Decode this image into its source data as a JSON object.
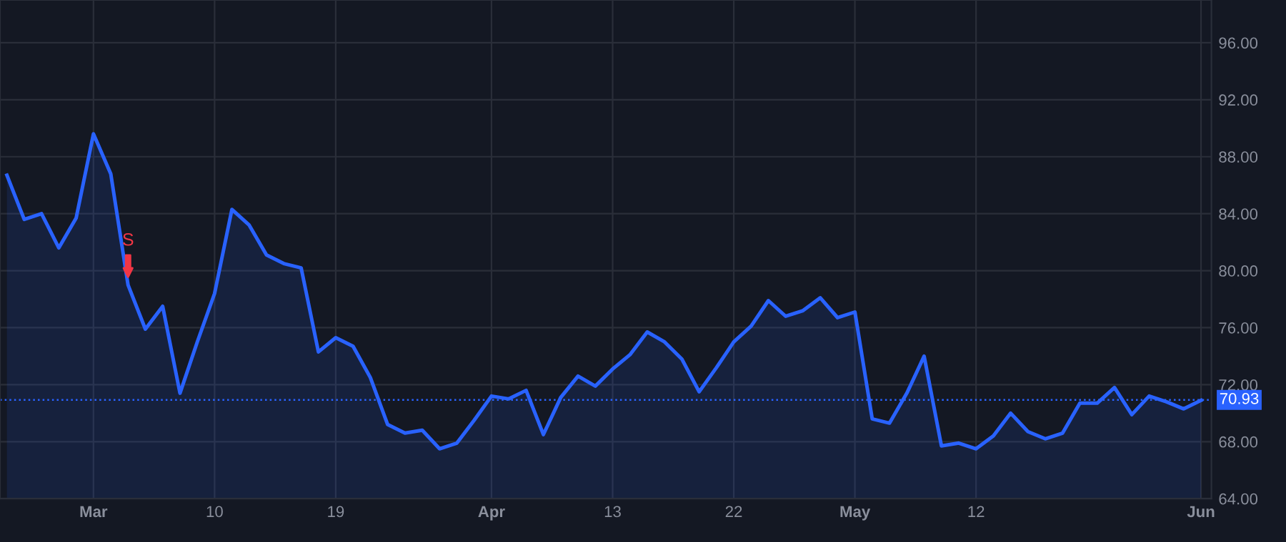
{
  "chart_data": {
    "type": "area",
    "categories": [
      null,
      null,
      null,
      null,
      null,
      "Mar",
      null,
      null,
      null,
      null,
      null,
      null,
      "10",
      null,
      null,
      null,
      null,
      null,
      null,
      "19",
      null,
      null,
      null,
      null,
      null,
      null,
      null,
      null,
      "Apr",
      null,
      null,
      null,
      null,
      null,
      null,
      "13",
      null,
      null,
      null,
      null,
      null,
      null,
      "22",
      null,
      null,
      null,
      null,
      null,
      null,
      "May",
      null,
      null,
      null,
      null,
      null,
      null,
      "12",
      null,
      null,
      null,
      null,
      null,
      null,
      null,
      null,
      null,
      null,
      null,
      null,
      "Jun"
    ],
    "series": [
      {
        "color": "#2962ff",
        "values": [
          86.7,
          83.6,
          84.0,
          81.6,
          83.7,
          89.6,
          86.8,
          79.0,
          75.9,
          77.5,
          71.4,
          75.0,
          78.4,
          84.3,
          83.2,
          81.1,
          80.5,
          80.2,
          74.3,
          75.3,
          74.7,
          72.5,
          69.2,
          68.6,
          68.8,
          67.5,
          67.9,
          69.5,
          71.2,
          71.0,
          71.6,
          68.5,
          71.1,
          72.6,
          71.9,
          73.1,
          74.1,
          75.7,
          75.0,
          73.8,
          71.5,
          73.2,
          75.0,
          76.1,
          77.9,
          76.8,
          77.2,
          78.1,
          76.7,
          77.1,
          69.6,
          69.3,
          71.4,
          74.0,
          67.7,
          67.9,
          67.5,
          68.4,
          70.0,
          68.7,
          68.2,
          68.6,
          70.7,
          70.7,
          71.8,
          69.9,
          71.2,
          70.8,
          70.3,
          70.9
        ]
      }
    ],
    "ylim": [
      64,
      99
    ],
    "yticks": [
      {
        "value": 64,
        "label": "64.00"
      },
      {
        "value": 68,
        "label": "68.00"
      },
      {
        "value": 72,
        "label": "72.00"
      },
      {
        "value": 76,
        "label": "76.00"
      },
      {
        "value": 80,
        "label": "80.00"
      },
      {
        "value": 84,
        "label": "84.00"
      },
      {
        "value": 88,
        "label": "88.00"
      },
      {
        "value": 92,
        "label": "92.00"
      },
      {
        "value": 96,
        "label": "96.00"
      }
    ],
    "grid": true,
    "annotations": [
      {
        "text": "S",
        "y": 79.0
      }
    ],
    "ref_lines": [
      {
        "axis": "y",
        "value": 70.93,
        "label": "70.93",
        "color": "#2962ff",
        "line_style": "dotted"
      }
    ]
  }
}
